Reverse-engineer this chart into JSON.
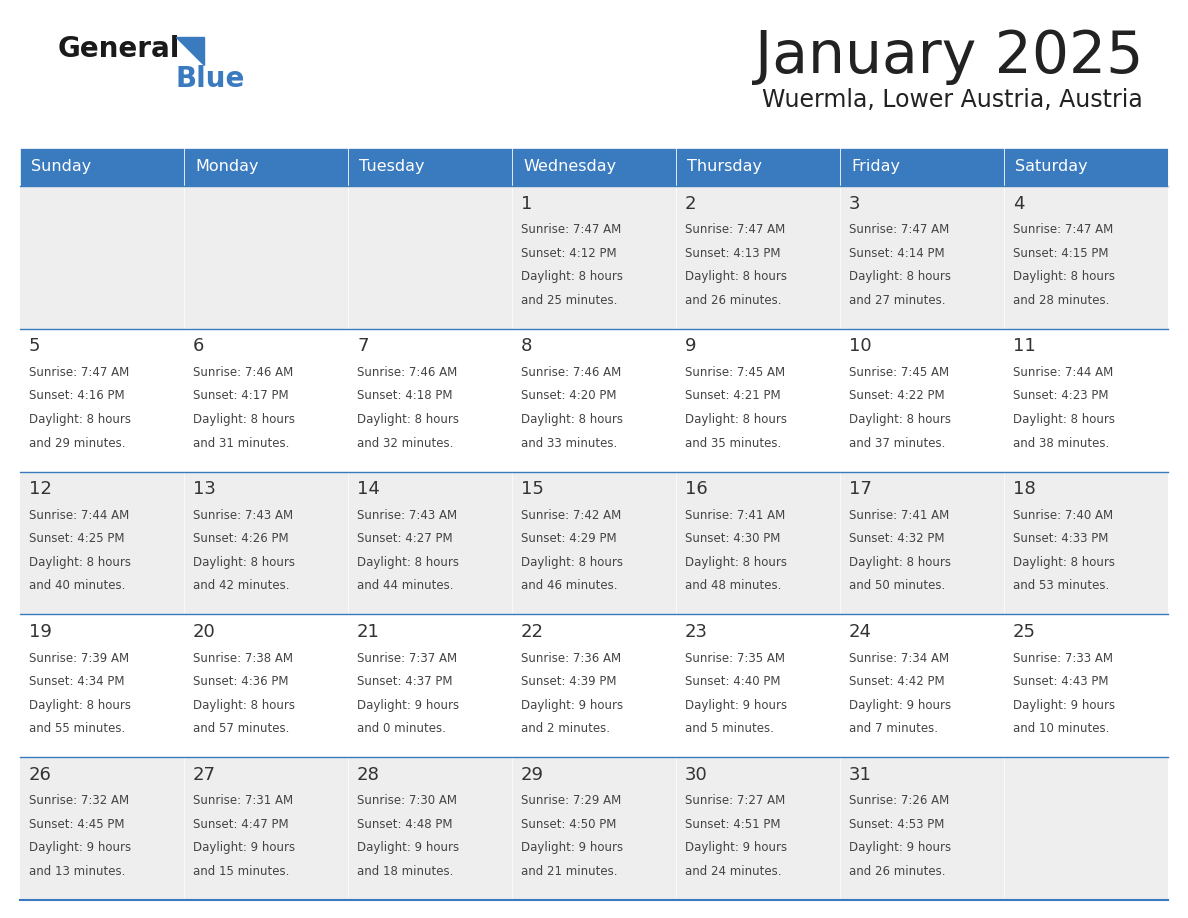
{
  "title": "January 2025",
  "subtitle": "Wuermla, Lower Austria, Austria",
  "header_color": "#3a7abf",
  "header_text_color": "#ffffff",
  "day_names": [
    "Sunday",
    "Monday",
    "Tuesday",
    "Wednesday",
    "Thursday",
    "Friday",
    "Saturday"
  ],
  "alt_row_color": "#eeeeee",
  "white_color": "#ffffff",
  "border_color": "#3a7abf",
  "text_color": "#444444",
  "date_color": "#333333",
  "title_color": "#222222",
  "calendar": [
    [
      {
        "day": "",
        "sunrise": "",
        "sunset": "",
        "daylight": ""
      },
      {
        "day": "",
        "sunrise": "",
        "sunset": "",
        "daylight": ""
      },
      {
        "day": "",
        "sunrise": "",
        "sunset": "",
        "daylight": ""
      },
      {
        "day": "1",
        "sunrise": "7:47 AM",
        "sunset": "4:12 PM",
        "daylight": "8 hours and 25 minutes."
      },
      {
        "day": "2",
        "sunrise": "7:47 AM",
        "sunset": "4:13 PM",
        "daylight": "8 hours and 26 minutes."
      },
      {
        "day": "3",
        "sunrise": "7:47 AM",
        "sunset": "4:14 PM",
        "daylight": "8 hours and 27 minutes."
      },
      {
        "day": "4",
        "sunrise": "7:47 AM",
        "sunset": "4:15 PM",
        "daylight": "8 hours and 28 minutes."
      }
    ],
    [
      {
        "day": "5",
        "sunrise": "7:47 AM",
        "sunset": "4:16 PM",
        "daylight": "8 hours and 29 minutes."
      },
      {
        "day": "6",
        "sunrise": "7:46 AM",
        "sunset": "4:17 PM",
        "daylight": "8 hours and 31 minutes."
      },
      {
        "day": "7",
        "sunrise": "7:46 AM",
        "sunset": "4:18 PM",
        "daylight": "8 hours and 32 minutes."
      },
      {
        "day": "8",
        "sunrise": "7:46 AM",
        "sunset": "4:20 PM",
        "daylight": "8 hours and 33 minutes."
      },
      {
        "day": "9",
        "sunrise": "7:45 AM",
        "sunset": "4:21 PM",
        "daylight": "8 hours and 35 minutes."
      },
      {
        "day": "10",
        "sunrise": "7:45 AM",
        "sunset": "4:22 PM",
        "daylight": "8 hours and 37 minutes."
      },
      {
        "day": "11",
        "sunrise": "7:44 AM",
        "sunset": "4:23 PM",
        "daylight": "8 hours and 38 minutes."
      }
    ],
    [
      {
        "day": "12",
        "sunrise": "7:44 AM",
        "sunset": "4:25 PM",
        "daylight": "8 hours and 40 minutes."
      },
      {
        "day": "13",
        "sunrise": "7:43 AM",
        "sunset": "4:26 PM",
        "daylight": "8 hours and 42 minutes."
      },
      {
        "day": "14",
        "sunrise": "7:43 AM",
        "sunset": "4:27 PM",
        "daylight": "8 hours and 44 minutes."
      },
      {
        "day": "15",
        "sunrise": "7:42 AM",
        "sunset": "4:29 PM",
        "daylight": "8 hours and 46 minutes."
      },
      {
        "day": "16",
        "sunrise": "7:41 AM",
        "sunset": "4:30 PM",
        "daylight": "8 hours and 48 minutes."
      },
      {
        "day": "17",
        "sunrise": "7:41 AM",
        "sunset": "4:32 PM",
        "daylight": "8 hours and 50 minutes."
      },
      {
        "day": "18",
        "sunrise": "7:40 AM",
        "sunset": "4:33 PM",
        "daylight": "8 hours and 53 minutes."
      }
    ],
    [
      {
        "day": "19",
        "sunrise": "7:39 AM",
        "sunset": "4:34 PM",
        "daylight": "8 hours and 55 minutes."
      },
      {
        "day": "20",
        "sunrise": "7:38 AM",
        "sunset": "4:36 PM",
        "daylight": "8 hours and 57 minutes."
      },
      {
        "day": "21",
        "sunrise": "7:37 AM",
        "sunset": "4:37 PM",
        "daylight": "9 hours and 0 minutes."
      },
      {
        "day": "22",
        "sunrise": "7:36 AM",
        "sunset": "4:39 PM",
        "daylight": "9 hours and 2 minutes."
      },
      {
        "day": "23",
        "sunrise": "7:35 AM",
        "sunset": "4:40 PM",
        "daylight": "9 hours and 5 minutes."
      },
      {
        "day": "24",
        "sunrise": "7:34 AM",
        "sunset": "4:42 PM",
        "daylight": "9 hours and 7 minutes."
      },
      {
        "day": "25",
        "sunrise": "7:33 AM",
        "sunset": "4:43 PM",
        "daylight": "9 hours and 10 minutes."
      }
    ],
    [
      {
        "day": "26",
        "sunrise": "7:32 AM",
        "sunset": "4:45 PM",
        "daylight": "9 hours and 13 minutes."
      },
      {
        "day": "27",
        "sunrise": "7:31 AM",
        "sunset": "4:47 PM",
        "daylight": "9 hours and 15 minutes."
      },
      {
        "day": "28",
        "sunrise": "7:30 AM",
        "sunset": "4:48 PM",
        "daylight": "9 hours and 18 minutes."
      },
      {
        "day": "29",
        "sunrise": "7:29 AM",
        "sunset": "4:50 PM",
        "daylight": "9 hours and 21 minutes."
      },
      {
        "day": "30",
        "sunrise": "7:27 AM",
        "sunset": "4:51 PM",
        "daylight": "9 hours and 24 minutes."
      },
      {
        "day": "31",
        "sunrise": "7:26 AM",
        "sunset": "4:53 PM",
        "daylight": "9 hours and 26 minutes."
      },
      {
        "day": "",
        "sunrise": "",
        "sunset": "",
        "daylight": ""
      }
    ]
  ]
}
